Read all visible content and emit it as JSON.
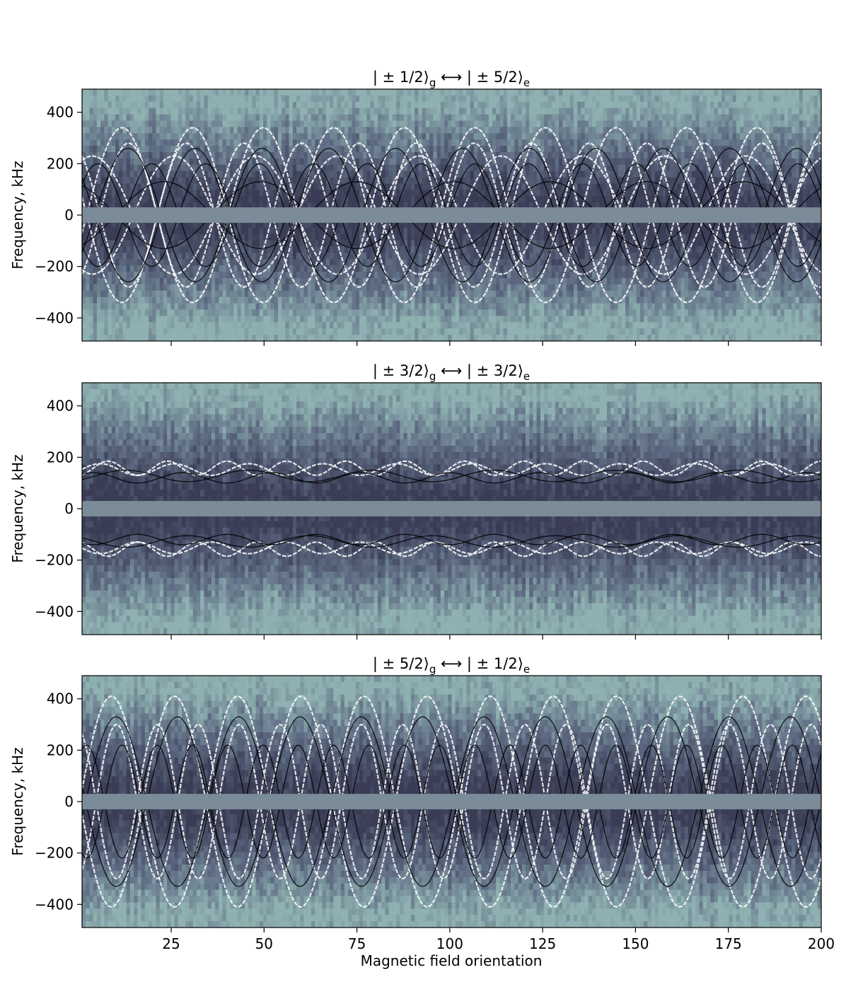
{
  "figure": {
    "xlabel": "Magnetic field orientation",
    "ylabel": "Frequency, kHz",
    "colors": {
      "background_dark": "#3a3d55",
      "background_mid": "#5f6d84",
      "background_light": "#8fb1b1",
      "white_line": "#ffffff",
      "black_line": "#000000",
      "mask_band": "#7b8c98",
      "axis": "#000000"
    }
  },
  "chart_data": [
    {
      "type": "heatmap",
      "title_parts": {
        "a": "| ± 1/2⟩",
        "b": "g",
        "arrow": " ⟷ ",
        "c": "| ± 5/2⟩",
        "d": "e"
      },
      "xlabel": "",
      "ylabel": "Frequency, kHz",
      "xlim": [
        1,
        200
      ],
      "ylim": [
        -490,
        490
      ],
      "xticks": [
        25,
        50,
        75,
        100,
        125,
        150,
        175,
        200
      ],
      "yticks": [
        400,
        200,
        0,
        -200,
        -400
      ],
      "masked_band": [
        -30,
        30
      ],
      "white_curves": [
        {
          "amp": 340,
          "period": 38,
          "phase": 1.2
        },
        {
          "amp": 280,
          "period": 31,
          "phase": 0.4
        },
        {
          "amp": 230,
          "period": 44,
          "phase": 2.6
        }
      ],
      "black_curves": [
        {
          "amp": 260,
          "period": 36,
          "phase": 0.8
        },
        {
          "amp": 200,
          "period": 29,
          "phase": 2.0
        },
        {
          "amp": 130,
          "period": 52,
          "phase": 3.5
        }
      ]
    },
    {
      "type": "heatmap",
      "title_parts": {
        "a": "| ± 3/2⟩",
        "b": "g",
        "arrow": " ⟷ ",
        "c": "| ± 3/2⟩",
        "d": "e"
      },
      "xlabel": "",
      "ylabel": "Frequency, kHz",
      "xlim": [
        1,
        200
      ],
      "ylim": [
        -490,
        490
      ],
      "xticks": [
        25,
        50,
        75,
        100,
        125,
        150,
        175,
        200
      ],
      "yticks": [
        400,
        200,
        0,
        -200,
        -400
      ],
      "masked_band": [
        -30,
        30
      ],
      "white_curves": [
        {
          "amp": 185,
          "period": 16,
          "phase": 0.0,
          "depth": 55
        },
        {
          "amp": 175,
          "period": 20,
          "phase": 1.3,
          "depth": 45
        }
      ],
      "black_curves": [
        {
          "amp": 150,
          "period": 33,
          "phase": 0.7,
          "depth": 45
        },
        {
          "amp": 140,
          "period": 24,
          "phase": 2.1,
          "depth": 40
        }
      ]
    },
    {
      "type": "heatmap",
      "title_parts": {
        "a": "| ± 5/2⟩",
        "b": "g",
        "arrow": " ⟷ ",
        "c": "| ± 1/2⟩",
        "d": "e"
      },
      "xlabel": "Magnetic field orientation",
      "ylabel": "Frequency, kHz",
      "xlim": [
        1,
        200
      ],
      "ylim": [
        -490,
        490
      ],
      "xticks": [
        25,
        50,
        75,
        100,
        125,
        150,
        175,
        200
      ],
      "yticks": [
        400,
        200,
        0,
        -200,
        -400
      ],
      "masked_band": [
        -30,
        30
      ],
      "white_curves": [
        {
          "amp": 410,
          "period": 34,
          "phase": 1.5
        },
        {
          "amp": 300,
          "period": 22,
          "phase": 0.2
        }
      ],
      "black_curves": [
        {
          "amp": 330,
          "period": 33,
          "phase": 1.2
        },
        {
          "amp": 220,
          "period": 19,
          "phase": 2.4
        }
      ]
    }
  ]
}
